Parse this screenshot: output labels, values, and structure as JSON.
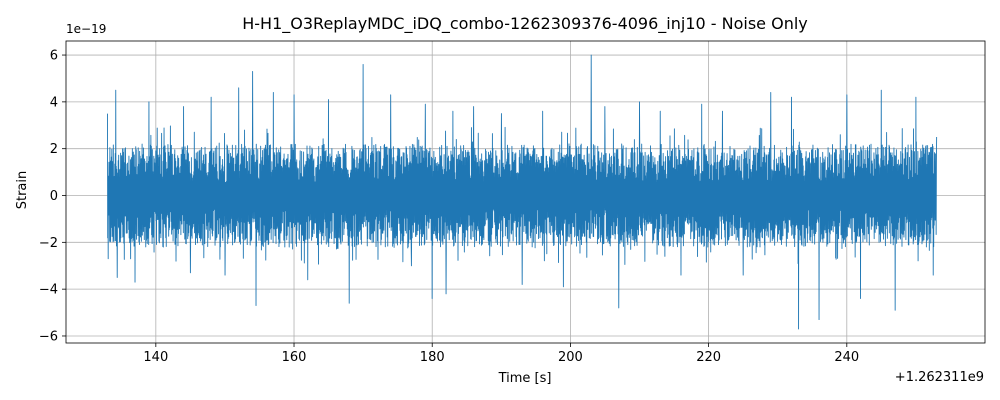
{
  "chart_data": {
    "type": "line",
    "title": "H-H1_O3ReplayMDC_iDQ_combo-1262309376-4096_inj10 - Noise Only",
    "xlabel": "Time [s]",
    "ylabel": "Strain",
    "x_offset_label": "+1.262311e9",
    "y_scale_label": "1e−19",
    "xlim": [
      127,
      260
    ],
    "ylim": [
      -6.3,
      6.6
    ],
    "x_ticks": [
      140,
      160,
      180,
      200,
      220,
      240
    ],
    "x_tick_labels": [
      "140",
      "160",
      "180",
      "200",
      "220",
      "240"
    ],
    "y_ticks": [
      -6,
      -4,
      -2,
      0,
      2,
      4,
      6
    ],
    "y_tick_labels": [
      "−6",
      "−4",
      "−2",
      "0",
      "2",
      "4",
      "6"
    ],
    "grid": true,
    "series": [
      {
        "color": "#1f77b4",
        "x_range": [
          133,
          253
        ],
        "envelope_typical": [
          -2.2,
          2.2
        ],
        "peaks": [
          [
            133.0,
            3.5
          ],
          [
            133.1,
            -2.7
          ],
          [
            134.2,
            4.5
          ],
          [
            134.4,
            -3.5
          ],
          [
            137.0,
            -3.7
          ],
          [
            139.0,
            4.0
          ],
          [
            144.0,
            3.8
          ],
          [
            145.0,
            -3.3
          ],
          [
            148.0,
            4.2
          ],
          [
            150.0,
            -3.4
          ],
          [
            152.0,
            4.6
          ],
          [
            154.0,
            5.3
          ],
          [
            154.5,
            -4.7
          ],
          [
            157.0,
            4.4
          ],
          [
            160.0,
            4.3
          ],
          [
            162.0,
            -3.6
          ],
          [
            165.0,
            4.1
          ],
          [
            168.0,
            -4.6
          ],
          [
            170.0,
            5.6
          ],
          [
            174.0,
            4.3
          ],
          [
            177.0,
            -3.0
          ],
          [
            179.0,
            3.9
          ],
          [
            180.0,
            -4.4
          ],
          [
            182.0,
            -4.2
          ],
          [
            183.0,
            3.6
          ],
          [
            186.0,
            3.8
          ],
          [
            190.0,
            3.5
          ],
          [
            193.0,
            -3.8
          ],
          [
            196.0,
            3.6
          ],
          [
            199.0,
            -3.9
          ],
          [
            203.0,
            6.0
          ],
          [
            205.0,
            3.8
          ],
          [
            207.0,
            -4.8
          ],
          [
            210.0,
            4.0
          ],
          [
            213.0,
            3.6
          ],
          [
            216.0,
            -3.4
          ],
          [
            219.0,
            3.9
          ],
          [
            222.0,
            3.6
          ],
          [
            225.0,
            -3.4
          ],
          [
            229.0,
            4.4
          ],
          [
            232.0,
            4.2
          ],
          [
            233.0,
            -5.7
          ],
          [
            236.0,
            -5.3
          ],
          [
            240.0,
            4.3
          ],
          [
            242.0,
            -4.4
          ],
          [
            245.0,
            4.5
          ],
          [
            247.0,
            -4.9
          ],
          [
            250.0,
            4.2
          ],
          [
            252.5,
            -3.4
          ],
          [
            253.0,
            2.5
          ]
        ]
      }
    ]
  }
}
